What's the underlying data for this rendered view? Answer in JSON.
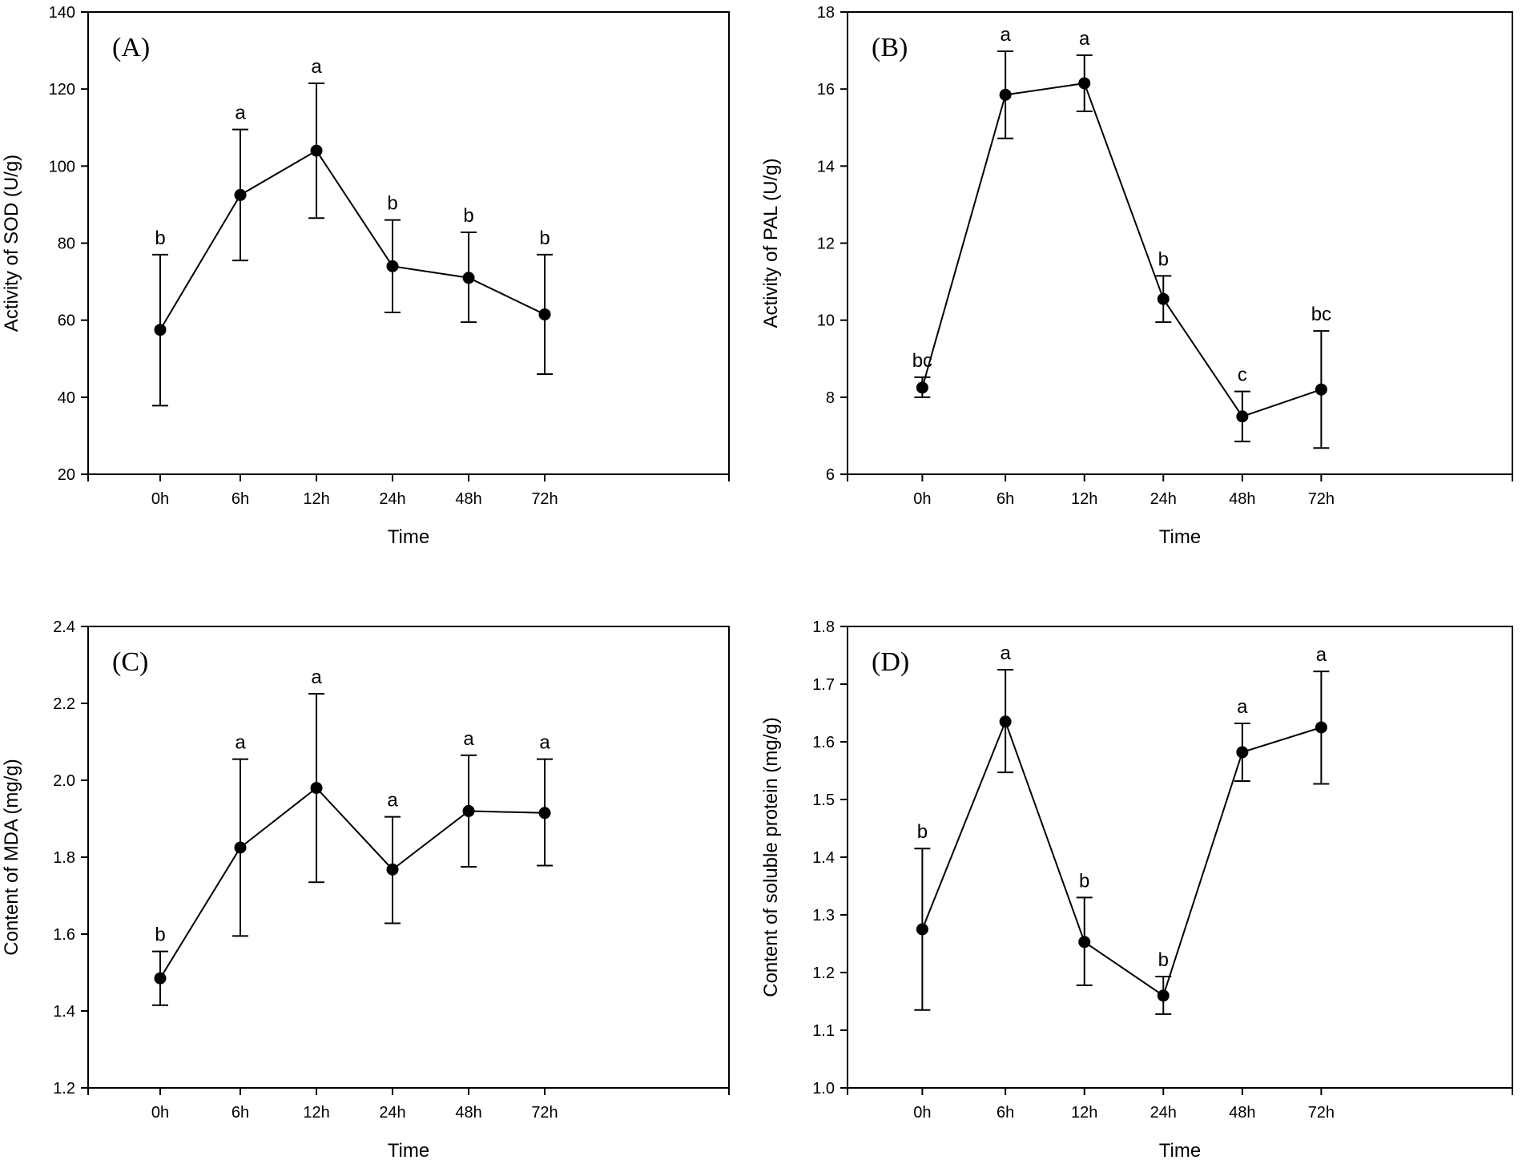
{
  "chart_data": [
    {
      "type": "line",
      "panel_label": "(A)",
      "xlabel": "Time",
      "ylabel": "Activity of SOD (U/g)",
      "categories": [
        "0h",
        "6h",
        "12h",
        "24h",
        "48h",
        "72h"
      ],
      "ylim": [
        20,
        140
      ],
      "yticks": [
        20,
        40,
        60,
        80,
        100,
        120,
        140
      ],
      "series": [
        {
          "values": [
            57.5,
            92.5,
            104,
            74,
            71,
            61.5
          ],
          "error_low": [
            37.8,
            75.5,
            86.5,
            62,
            59.5,
            46
          ],
          "error_high": [
            77,
            109.5,
            121.5,
            86,
            82.8,
            77
          ],
          "significance": [
            "b",
            "a",
            "a",
            "b",
            "b",
            "b"
          ]
        }
      ]
    },
    {
      "type": "line",
      "panel_label": "(B)",
      "xlabel": "Time",
      "ylabel": "Activity of PAL (U/g)",
      "categories": [
        "0h",
        "6h",
        "12h",
        "24h",
        "48h",
        "72h"
      ],
      "ylim": [
        6,
        18
      ],
      "yticks": [
        6,
        8,
        10,
        12,
        14,
        16,
        18
      ],
      "series": [
        {
          "values": [
            8.25,
            15.85,
            16.15,
            10.55,
            7.5,
            8.2
          ],
          "error_low": [
            8.0,
            14.72,
            15.42,
            9.95,
            6.85,
            6.68
          ],
          "error_high": [
            8.52,
            16.98,
            16.88,
            11.15,
            8.15,
            9.72
          ],
          "significance": [
            "bc",
            "a",
            "a",
            "b",
            "c",
            "bc"
          ]
        }
      ]
    },
    {
      "type": "line",
      "panel_label": "(C)",
      "xlabel": "Time",
      "ylabel": "Content of MDA (mg/g)",
      "categories": [
        "0h",
        "6h",
        "12h",
        "24h",
        "48h",
        "72h"
      ],
      "ylim": [
        1.2,
        2.4
      ],
      "yticks": [
        1.2,
        1.4,
        1.6,
        1.8,
        2.0,
        2.2,
        2.4
      ],
      "series": [
        {
          "values": [
            1.485,
            1.825,
            1.98,
            1.768,
            1.92,
            1.915
          ],
          "error_low": [
            1.415,
            1.595,
            1.735,
            1.628,
            1.775,
            1.778
          ],
          "error_high": [
            1.555,
            2.055,
            2.225,
            1.905,
            2.065,
            2.055
          ],
          "significance": [
            "b",
            "a",
            "a",
            "a",
            "a",
            "a"
          ]
        }
      ]
    },
    {
      "type": "line",
      "panel_label": "(D)",
      "xlabel": "Time",
      "ylabel": "Content of soluble protein (mg/g)",
      "categories": [
        "0h",
        "6h",
        "12h",
        "24h",
        "48h",
        "72h"
      ],
      "ylim": [
        1.0,
        1.8
      ],
      "yticks": [
        1.0,
        1.1,
        1.2,
        1.3,
        1.4,
        1.5,
        1.6,
        1.7,
        1.8
      ],
      "series": [
        {
          "values": [
            1.275,
            1.635,
            1.253,
            1.16,
            1.582,
            1.625
          ],
          "error_low": [
            1.135,
            1.547,
            1.178,
            1.128,
            1.532,
            1.527
          ],
          "error_high": [
            1.415,
            1.725,
            1.33,
            1.193,
            1.632,
            1.722
          ],
          "significance": [
            "b",
            "a",
            "b",
            "b",
            "a",
            "a"
          ]
        }
      ]
    }
  ]
}
